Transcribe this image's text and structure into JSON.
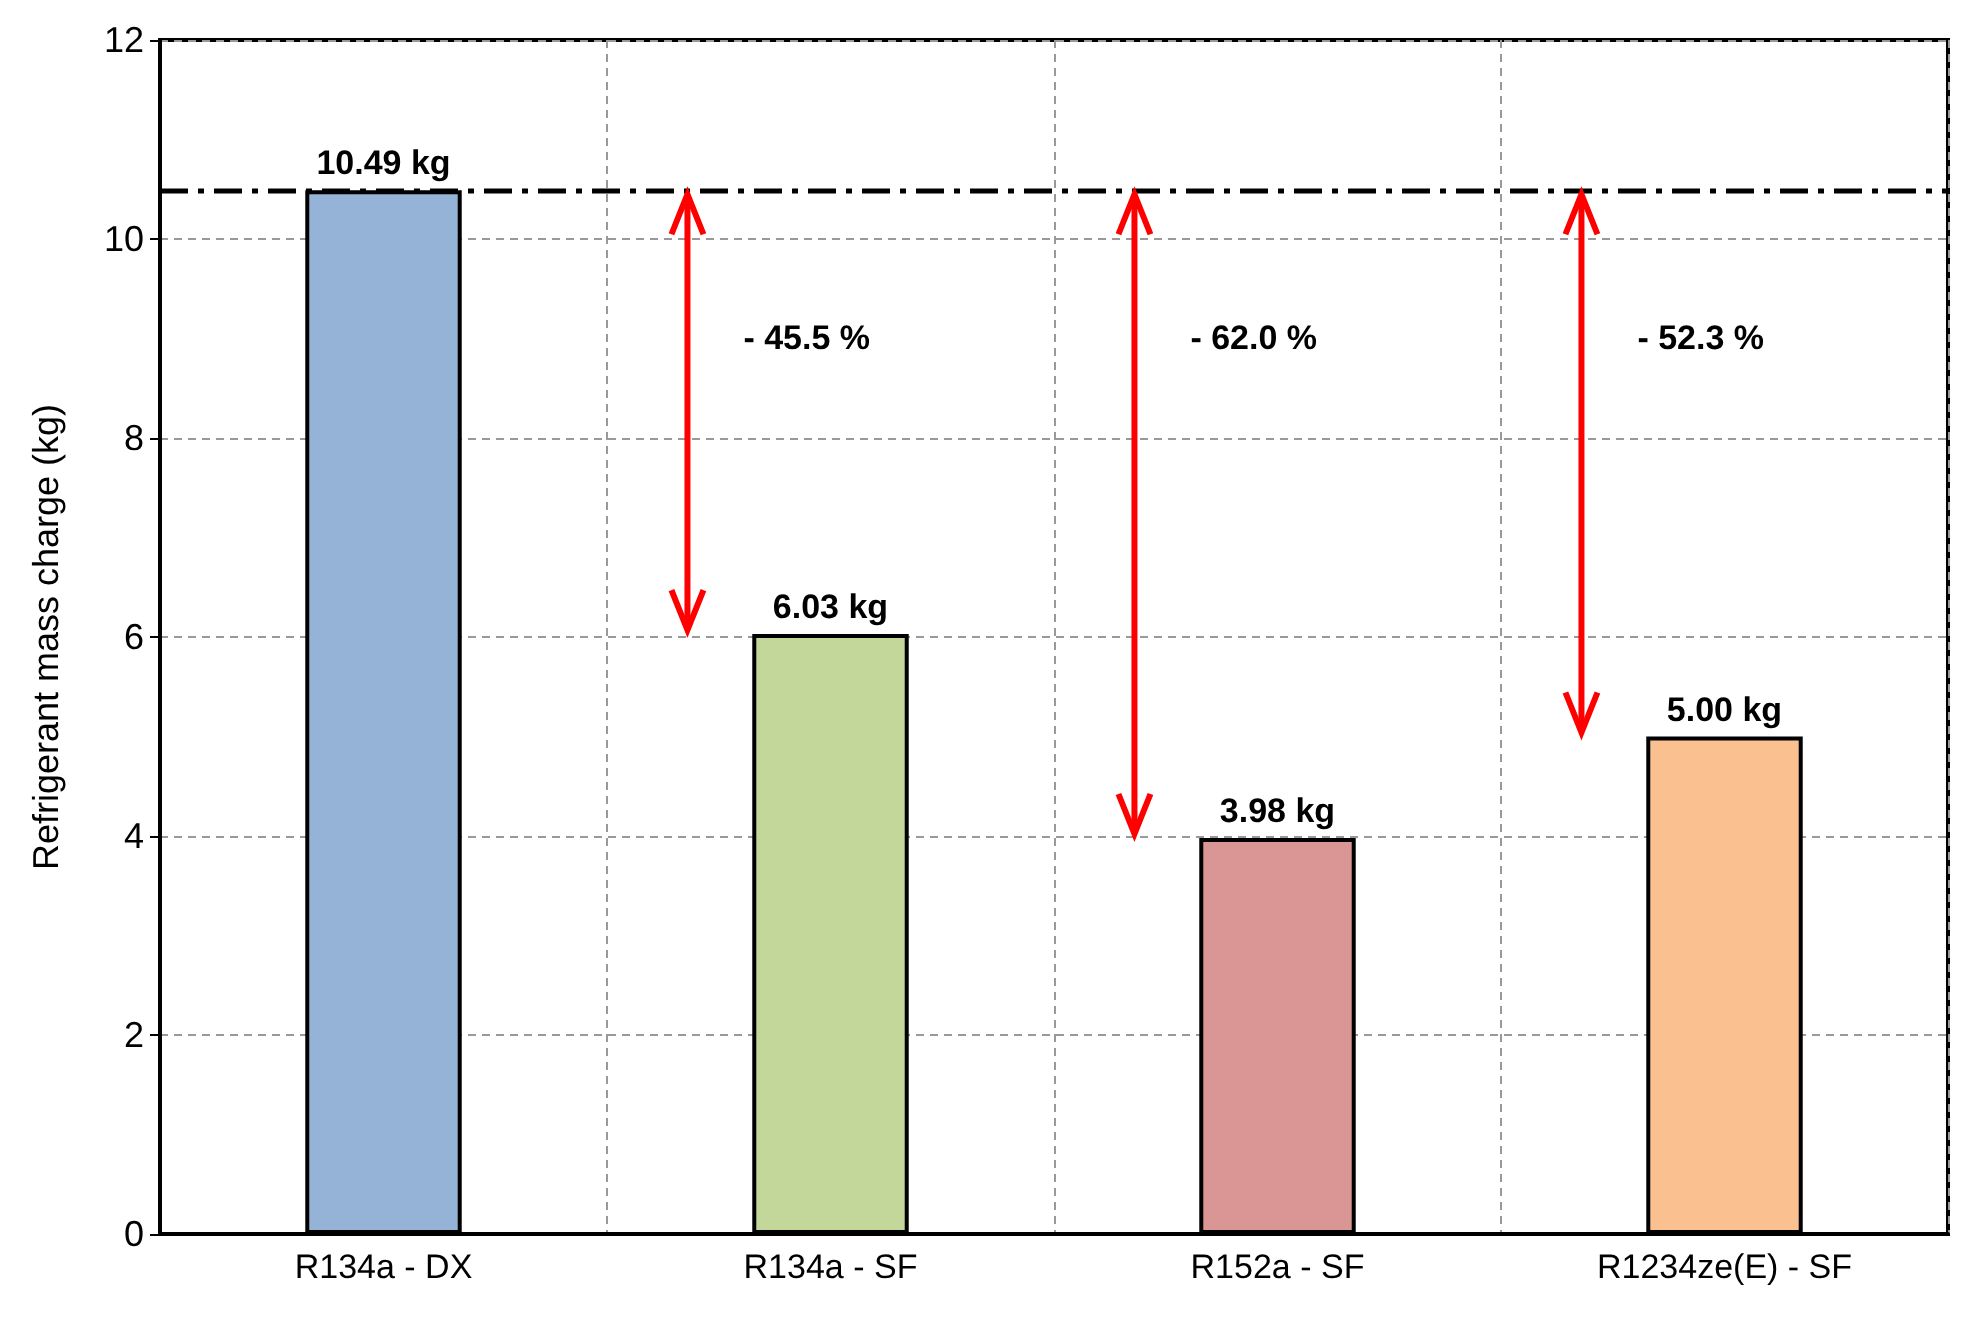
{
  "chart_data": {
    "type": "bar",
    "ylabel": "Refrigerant mass charge (kg)",
    "categories": [
      "R134a - DX",
      "R134a - SF",
      "R152a - SF",
      "R1234ze(E) - SF"
    ],
    "values": [
      10.49,
      6.03,
      3.98,
      5.0
    ],
    "colors": [
      "#95b3d7",
      "#c4d79b",
      "#d99694",
      "#fac090"
    ],
    "value_labels": [
      "10.49 kg",
      "6.03 kg",
      "3.98 kg",
      "5.00 kg"
    ],
    "ylim": [
      0,
      12
    ],
    "yticks": [
      0,
      2,
      4,
      6,
      8,
      10,
      12
    ],
    "grid": true,
    "ref_lines": [
      {
        "axis": "y",
        "value": 10.49,
        "color": "#000000",
        "line_style": "dashdot"
      }
    ],
    "annotations": [
      "- 45.5 %",
      "- 62.0 %",
      "- 52.3 %"
    ]
  }
}
